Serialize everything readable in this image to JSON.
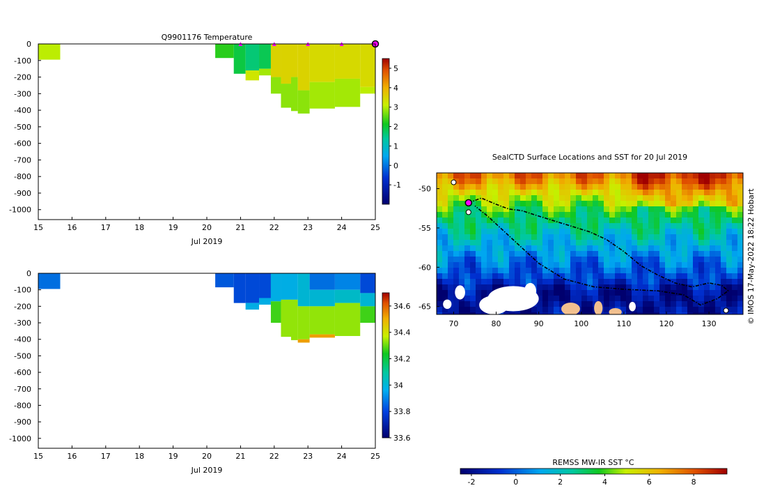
{
  "temperature_panel": {
    "title": "Q9901176  Temperature",
    "xlabel": "Jul 2019",
    "colorbar_ticks": [
      "-1",
      "0",
      "1",
      "2",
      "3",
      "4",
      "5"
    ]
  },
  "salinity_panel": {
    "title": "",
    "xlabel": "Jul 2019",
    "colorbar_ticks": [
      "33.6",
      "33.8",
      "34",
      "34.2",
      "34.4",
      "34.6"
    ]
  },
  "map_panel": {
    "title": "SealCTD Surface Locations and SST for 20 Jul 2019",
    "side_note": "© IMOS 17-May-2022 18:22 Hobart",
    "colorbar_label": "REMSS MW-IR SST °C",
    "colorbar_ticks": [
      "-2",
      "0",
      "2",
      "4",
      "6",
      "8"
    ]
  },
  "colors": {
    "temp_light_green": "#a8f000",
    "temp_yellow_green": "#c8f500",
    "temp_green": "#5ad800",
    "temp_dark_green": "#22c800",
    "sal_blue": "#1e90ff",
    "sal_mid_blue": "#0e7cf0",
    "sal_cyan": "#00b8f0",
    "sal_green": "#22c030",
    "ocean_deep_blue": "#000a8a",
    "land_tan": "#f2c08f",
    "marker_magenta": "#ff00ff"
  },
  "chart_data": [
    {
      "type": "heatmap",
      "variable": "Temperature",
      "x": [
        "15",
        "16",
        "17",
        "18",
        "19",
        "20",
        "21",
        "22",
        "23",
        "24",
        "25"
      ],
      "y": [
        "0",
        "-100",
        "-200",
        "-300",
        "-400",
        "-500",
        "-600",
        "-700",
        "-800",
        "-900",
        "-1000"
      ],
      "xlim": [
        15,
        25
      ],
      "ylim": [
        -1060,
        0
      ],
      "clim": [
        -2,
        5.5
      ],
      "grid": false,
      "profile_markers_day": [
        21,
        22,
        23,
        24,
        25
      ],
      "profiles": [
        {
          "day_start": 15.0,
          "day_end": 15.65,
          "bottom_depth": -95,
          "segments": [
            {
              "top": 0,
              "bottom": -95,
              "value": 2.6
            }
          ]
        },
        {
          "day_start": 20.25,
          "day_end": 20.8,
          "bottom_depth": -85,
          "segments": [
            {
              "top": 0,
              "bottom": -85,
              "value": 2.0
            }
          ]
        },
        {
          "day_start": 20.8,
          "day_end": 21.15,
          "bottom_depth": -180,
          "segments": [
            {
              "top": 0,
              "bottom": -180,
              "value": 1.7
            }
          ]
        },
        {
          "day_start": 21.15,
          "day_end": 21.55,
          "bottom_depth": -220,
          "segments": [
            {
              "top": 0,
              "bottom": -160,
              "value": 1.4
            },
            {
              "top": -160,
              "bottom": -220,
              "value": 2.8
            }
          ]
        },
        {
          "day_start": 21.55,
          "day_end": 21.9,
          "bottom_depth": -190,
          "segments": [
            {
              "top": 0,
              "bottom": -150,
              "value": 1.6
            },
            {
              "top": -150,
              "bottom": -190,
              "value": 2.5
            }
          ]
        },
        {
          "day_start": 21.9,
          "day_end": 22.2,
          "bottom_depth": -300,
          "segments": [
            {
              "top": 0,
              "bottom": -200,
              "value": 3.1
            },
            {
              "top": -200,
              "bottom": -300,
              "value": 2.4
            }
          ]
        },
        {
          "day_start": 22.2,
          "day_end": 22.5,
          "bottom_depth": -385,
          "segments": [
            {
              "top": 0,
              "bottom": -240,
              "value": 3.1
            },
            {
              "top": -240,
              "bottom": -385,
              "value": 2.4
            }
          ]
        },
        {
          "day_start": 22.5,
          "day_end": 22.7,
          "bottom_depth": -405,
          "segments": [
            {
              "top": 0,
              "bottom": -200,
              "value": 3.1
            },
            {
              "top": -200,
              "bottom": -405,
              "value": 2.4
            }
          ]
        },
        {
          "day_start": 22.7,
          "day_end": 23.05,
          "bottom_depth": -420,
          "segments": [
            {
              "top": 0,
              "bottom": -280,
              "value": 3.1
            },
            {
              "top": -280,
              "bottom": -420,
              "value": 2.4
            }
          ]
        },
        {
          "day_start": 23.05,
          "day_end": 23.8,
          "bottom_depth": -390,
          "segments": [
            {
              "top": 0,
              "bottom": -230,
              "value": 3.0
            },
            {
              "top": -230,
              "bottom": -390,
              "value": 2.5
            }
          ]
        },
        {
          "day_start": 23.8,
          "day_end": 24.55,
          "bottom_depth": -380,
          "segments": [
            {
              "top": 0,
              "bottom": -210,
              "value": 3.0
            },
            {
              "top": -210,
              "bottom": -380,
              "value": 2.5
            }
          ]
        },
        {
          "day_start": 24.55,
          "day_end": 25.0,
          "bottom_depth": -300,
          "segments": [
            {
              "top": 0,
              "bottom": -260,
              "value": 3.0
            },
            {
              "top": -260,
              "bottom": -300,
              "value": 2.6
            }
          ]
        }
      ]
    },
    {
      "type": "heatmap",
      "variable": "Salinity",
      "x": [
        "15",
        "16",
        "17",
        "18",
        "19",
        "20",
        "21",
        "22",
        "23",
        "24",
        "25"
      ],
      "y": [
        "0",
        "-100",
        "-200",
        "-300",
        "-400",
        "-500",
        "-600",
        "-700",
        "-800",
        "-900",
        "-1000"
      ],
      "xlim": [
        15,
        25
      ],
      "ylim": [
        -1060,
        0
      ],
      "clim": [
        33.6,
        34.7
      ],
      "grid": false,
      "profiles": [
        {
          "day_start": 15.0,
          "day_end": 15.65,
          "bottom_depth": -95,
          "segments": [
            {
              "top": 0,
              "bottom": -95,
              "value": 33.85
            }
          ]
        },
        {
          "day_start": 20.25,
          "day_end": 20.8,
          "bottom_depth": -85,
          "segments": [
            {
              "top": 0,
              "bottom": -85,
              "value": 33.82
            }
          ]
        },
        {
          "day_start": 20.8,
          "day_end": 21.15,
          "bottom_depth": -180,
          "segments": [
            {
              "top": 0,
              "bottom": -180,
              "value": 33.8
            }
          ]
        },
        {
          "day_start": 21.15,
          "day_end": 21.55,
          "bottom_depth": -220,
          "segments": [
            {
              "top": 0,
              "bottom": -180,
              "value": 33.8
            },
            {
              "top": -180,
              "bottom": -220,
              "value": 33.95
            }
          ]
        },
        {
          "day_start": 21.55,
          "day_end": 21.9,
          "bottom_depth": -190,
          "segments": [
            {
              "top": 0,
              "bottom": -150,
              "value": 33.8
            },
            {
              "top": -150,
              "bottom": -190,
              "value": 33.95
            }
          ]
        },
        {
          "day_start": 21.9,
          "day_end": 22.2,
          "bottom_depth": -300,
          "segments": [
            {
              "top": 0,
              "bottom": -170,
              "value": 33.95
            },
            {
              "top": -170,
              "bottom": -300,
              "value": 34.2
            }
          ]
        },
        {
          "day_start": 22.2,
          "day_end": 22.5,
          "bottom_depth": -385,
          "segments": [
            {
              "top": 0,
              "bottom": -160,
              "value": 33.95
            },
            {
              "top": -160,
              "bottom": -385,
              "value": 34.25
            }
          ]
        },
        {
          "day_start": 22.5,
          "day_end": 22.7,
          "bottom_depth": -405,
          "segments": [
            {
              "top": 0,
              "bottom": -160,
              "value": 33.95
            },
            {
              "top": -160,
              "bottom": -405,
              "value": 34.25
            }
          ]
        },
        {
          "day_start": 22.7,
          "day_end": 23.05,
          "bottom_depth": -420,
          "segments": [
            {
              "top": 0,
              "bottom": -200,
              "value": 33.98
            },
            {
              "top": -200,
              "bottom": -400,
              "value": 34.25
            },
            {
              "top": -400,
              "bottom": -420,
              "value": 34.45
            }
          ]
        },
        {
          "day_start": 23.05,
          "day_end": 23.8,
          "bottom_depth": -390,
          "segments": [
            {
              "top": 0,
              "bottom": -100,
              "value": 33.85
            },
            {
              "top": -100,
              "bottom": -200,
              "value": 33.98
            },
            {
              "top": -200,
              "bottom": -370,
              "value": 34.25
            },
            {
              "top": -370,
              "bottom": -390,
              "value": 34.45
            }
          ]
        },
        {
          "day_start": 23.8,
          "day_end": 24.55,
          "bottom_depth": -380,
          "segments": [
            {
              "top": 0,
              "bottom": -100,
              "value": 33.88
            },
            {
              "top": -100,
              "bottom": -180,
              "value": 34.0
            },
            {
              "top": -180,
              "bottom": -380,
              "value": 34.25
            }
          ]
        },
        {
          "day_start": 24.55,
          "day_end": 25.0,
          "bottom_depth": -300,
          "segments": [
            {
              "top": 0,
              "bottom": -120,
              "value": 33.8
            },
            {
              "top": -120,
              "bottom": -200,
              "value": 33.98
            },
            {
              "top": -200,
              "bottom": -300,
              "value": 34.2
            }
          ]
        }
      ]
    },
    {
      "type": "heatmap",
      "variable": "SST",
      "title": "SealCTD Surface Locations and SST for 20 Jul 2019",
      "x": [
        "70",
        "80",
        "90",
        "100",
        "110",
        "120",
        "130"
      ],
      "y": [
        "-50",
        "-55",
        "-60",
        "-65"
      ],
      "xlim": [
        66,
        138
      ],
      "ylim": [
        -66,
        -48
      ],
      "clim": [
        -2.5,
        9.5
      ],
      "grid": false,
      "colorbar_label": "REMSS MW-IR SST °C",
      "sst_latitude_profile": [
        {
          "lat": -48.5,
          "value": 7.5
        },
        {
          "lat": -50.5,
          "value": 5.5
        },
        {
          "lat": -53.0,
          "value": 3.5
        },
        {
          "lat": -56.0,
          "value": 2.0
        },
        {
          "lat": -59.0,
          "value": 0.5
        },
        {
          "lat": -61.5,
          "value": -0.5
        },
        {
          "lat": -63.0,
          "value": -1.8
        }
      ],
      "track": [
        {
          "lon": 73.5,
          "lat": -51.8
        },
        {
          "lon": 76.5,
          "lat": -51.2
        },
        {
          "lon": 80.0,
          "lat": -52.0
        },
        {
          "lon": 83.0,
          "lat": -52.6
        },
        {
          "lon": 86.0,
          "lat": -52.8
        },
        {
          "lon": 90.0,
          "lat": -53.5
        },
        {
          "lon": 96.0,
          "lat": -54.5
        },
        {
          "lon": 102.0,
          "lat": -55.5
        },
        {
          "lon": 106.0,
          "lat": -56.5
        },
        {
          "lon": 110.0,
          "lat": -58.0
        },
        {
          "lon": 114.0,
          "lat": -59.8
        },
        {
          "lon": 118.0,
          "lat": -61.0
        },
        {
          "lon": 122.0,
          "lat": -62.0
        },
        {
          "lon": 126.0,
          "lat": -62.5
        },
        {
          "lon": 130.0,
          "lat": -62.0
        },
        {
          "lon": 133.0,
          "lat": -62.3
        },
        {
          "lon": 134.5,
          "lat": -63.0
        },
        {
          "lon": 132.0,
          "lat": -64.0
        },
        {
          "lon": 128.0,
          "lat": -64.8
        },
        {
          "lon": 124.0,
          "lat": -63.5
        },
        {
          "lon": 118.0,
          "lat": -63.0
        },
        {
          "lon": 110.0,
          "lat": -62.8
        },
        {
          "lon": 103.0,
          "lat": -62.5
        },
        {
          "lon": 96.0,
          "lat": -61.5
        },
        {
          "lon": 90.0,
          "lat": -59.5
        },
        {
          "lon": 84.0,
          "lat": -56.5
        },
        {
          "lon": 78.0,
          "lat": -53.5
        },
        {
          "lon": 75.0,
          "lat": -52.2
        }
      ],
      "current_position": {
        "lon": 73.5,
        "lat": -51.8
      },
      "islands": [
        {
          "lon": 70.0,
          "lat": -49.2
        },
        {
          "lon": 73.5,
          "lat": -53.0
        },
        {
          "lon": 134.0,
          "lat": -65.5
        }
      ],
      "ice_patches": [
        {
          "lon": 84.0,
          "lat": -64.0,
          "rx": 6,
          "ry": 1.6
        },
        {
          "lon": 79.5,
          "lat": -64.8,
          "rx": 3.5,
          "ry": 1.2
        },
        {
          "lon": 71.5,
          "lat": -63.2,
          "rx": 1.2,
          "ry": 0.9
        },
        {
          "lon": 68.5,
          "lat": -64.7,
          "rx": 1.0,
          "ry": 0.6
        },
        {
          "lon": 88.0,
          "lat": -63.0,
          "rx": 1.4,
          "ry": 1.0
        },
        {
          "lon": 112.0,
          "lat": -65.0,
          "rx": 0.8,
          "ry": 0.6
        }
      ],
      "land_patches": [
        {
          "lon": 97.5,
          "lat": -65.3,
          "rx": 2.2,
          "ry": 0.8
        },
        {
          "lon": 104.0,
          "lat": -65.2,
          "rx": 1.0,
          "ry": 0.9
        },
        {
          "lon": 108.0,
          "lat": -65.7,
          "rx": 1.5,
          "ry": 0.5
        }
      ]
    }
  ]
}
